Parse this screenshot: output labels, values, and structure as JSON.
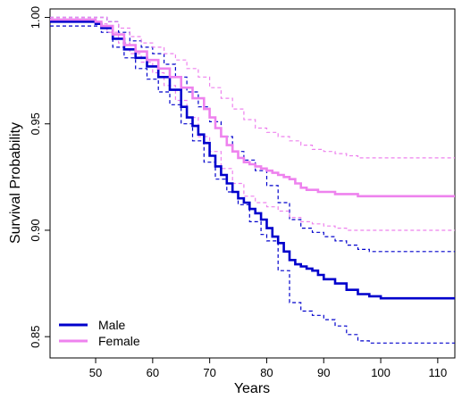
{
  "chart_data": {
    "type": "line",
    "title": "",
    "xlabel": "Years",
    "ylabel": "Survival Probability",
    "xlim": [
      42,
      113
    ],
    "ylim": [
      0.84,
      1.004
    ],
    "x_ticks": [
      50,
      60,
      70,
      80,
      90,
      100,
      110
    ],
    "y_ticks": [
      0.85,
      0.9,
      0.95,
      1.0
    ],
    "x_tick_labels": [
      "50",
      "60",
      "70",
      "80",
      "90",
      "100",
      "110"
    ],
    "y_tick_labels": [
      "0.85",
      "0.90",
      "0.95",
      "1.00"
    ],
    "grid": false,
    "legend_position": "bottom-left",
    "series": [
      {
        "name": "Male",
        "color": "#0000cc",
        "style": "solid",
        "x": [
          42,
          50,
          51,
          53,
          55,
          57,
          59,
          61,
          63,
          65,
          66,
          67,
          68,
          69,
          70,
          71,
          72,
          73,
          74,
          75,
          76,
          77,
          78,
          79,
          80,
          81,
          82,
          83,
          84,
          85,
          86,
          87,
          88,
          89,
          90,
          92,
          94,
          96,
          98,
          100,
          113
        ],
        "y": [
          0.998,
          0.997,
          0.995,
          0.99,
          0.985,
          0.981,
          0.977,
          0.972,
          0.966,
          0.958,
          0.953,
          0.949,
          0.945,
          0.941,
          0.935,
          0.93,
          0.926,
          0.922,
          0.918,
          0.915,
          0.913,
          0.91,
          0.908,
          0.905,
          0.901,
          0.897,
          0.894,
          0.89,
          0.886,
          0.884,
          0.883,
          0.882,
          0.881,
          0.879,
          0.877,
          0.875,
          0.872,
          0.87,
          0.869,
          0.868,
          0.868
        ]
      },
      {
        "name": "Female",
        "color": "#ee82ee",
        "style": "solid",
        "x": [
          42,
          50,
          51,
          53,
          55,
          57,
          59,
          61,
          63,
          65,
          67,
          69,
          70,
          71,
          72,
          73,
          74,
          75,
          76,
          77,
          78,
          79,
          80,
          81,
          82,
          83,
          84,
          85,
          86,
          87,
          88,
          89,
          90,
          92,
          94,
          96,
          98,
          100,
          113
        ],
        "y": [
          0.999,
          0.998,
          0.996,
          0.992,
          0.987,
          0.984,
          0.98,
          0.976,
          0.972,
          0.967,
          0.962,
          0.957,
          0.953,
          0.948,
          0.944,
          0.94,
          0.937,
          0.934,
          0.932,
          0.931,
          0.93,
          0.929,
          0.928,
          0.927,
          0.926,
          0.925,
          0.924,
          0.922,
          0.92,
          0.919,
          0.919,
          0.918,
          0.918,
          0.917,
          0.917,
          0.916,
          0.916,
          0.916,
          0.916
        ]
      },
      {
        "name": "",
        "color": "#0000cc",
        "style": "dashed",
        "x": [
          42,
          50,
          52,
          54,
          56,
          58,
          60,
          62,
          64,
          66,
          68,
          70,
          72,
          74,
          76,
          78,
          80,
          82,
          84,
          86,
          88,
          90,
          92,
          94,
          96,
          98,
          100,
          113
        ],
        "y": [
          1.0,
          1.0,
          0.998,
          0.993,
          0.989,
          0.986,
          0.983,
          0.978,
          0.972,
          0.965,
          0.958,
          0.951,
          0.944,
          0.937,
          0.933,
          0.928,
          0.921,
          0.913,
          0.905,
          0.901,
          0.899,
          0.897,
          0.895,
          0.893,
          0.891,
          0.89,
          0.89,
          0.89
        ]
      },
      {
        "name": "",
        "color": "#0000cc",
        "style": "dashed",
        "x": [
          42,
          50,
          51,
          53,
          55,
          57,
          59,
          61,
          63,
          65,
          67,
          69,
          71,
          73,
          75,
          77,
          79,
          80,
          82,
          84,
          86,
          88,
          90,
          92,
          94,
          96,
          98,
          100,
          113
        ],
        "y": [
          0.996,
          0.996,
          0.993,
          0.986,
          0.981,
          0.976,
          0.971,
          0.965,
          0.959,
          0.95,
          0.942,
          0.932,
          0.924,
          0.918,
          0.912,
          0.904,
          0.898,
          0.895,
          0.881,
          0.866,
          0.862,
          0.86,
          0.858,
          0.855,
          0.851,
          0.848,
          0.847,
          0.847,
          0.847
        ]
      },
      {
        "name": "",
        "color": "#ee82ee",
        "style": "dashed",
        "x": [
          42,
          50,
          52,
          54,
          56,
          58,
          60,
          62,
          64,
          66,
          68,
          70,
          72,
          74,
          76,
          78,
          80,
          82,
          84,
          86,
          88,
          90,
          92,
          94,
          96,
          98,
          100,
          113
        ],
        "y": [
          1.0,
          1.0,
          0.998,
          0.995,
          0.991,
          0.988,
          0.986,
          0.983,
          0.98,
          0.976,
          0.972,
          0.967,
          0.962,
          0.957,
          0.952,
          0.948,
          0.946,
          0.944,
          0.942,
          0.94,
          0.938,
          0.937,
          0.936,
          0.935,
          0.934,
          0.934,
          0.934,
          0.934
        ]
      },
      {
        "name": "",
        "color": "#ee82ee",
        "style": "dashed",
        "x": [
          42,
          50,
          52,
          54,
          56,
          58,
          60,
          62,
          64,
          66,
          68,
          70,
          72,
          74,
          76,
          78,
          80,
          82,
          84,
          86,
          88,
          90,
          92,
          94,
          96,
          98,
          100,
          113
        ],
        "y": [
          0.998,
          0.997,
          0.993,
          0.988,
          0.983,
          0.979,
          0.974,
          0.968,
          0.961,
          0.953,
          0.944,
          0.937,
          0.929,
          0.922,
          0.916,
          0.913,
          0.911,
          0.909,
          0.906,
          0.904,
          0.903,
          0.902,
          0.901,
          0.9,
          0.9,
          0.9,
          0.9,
          0.9
        ]
      }
    ]
  }
}
